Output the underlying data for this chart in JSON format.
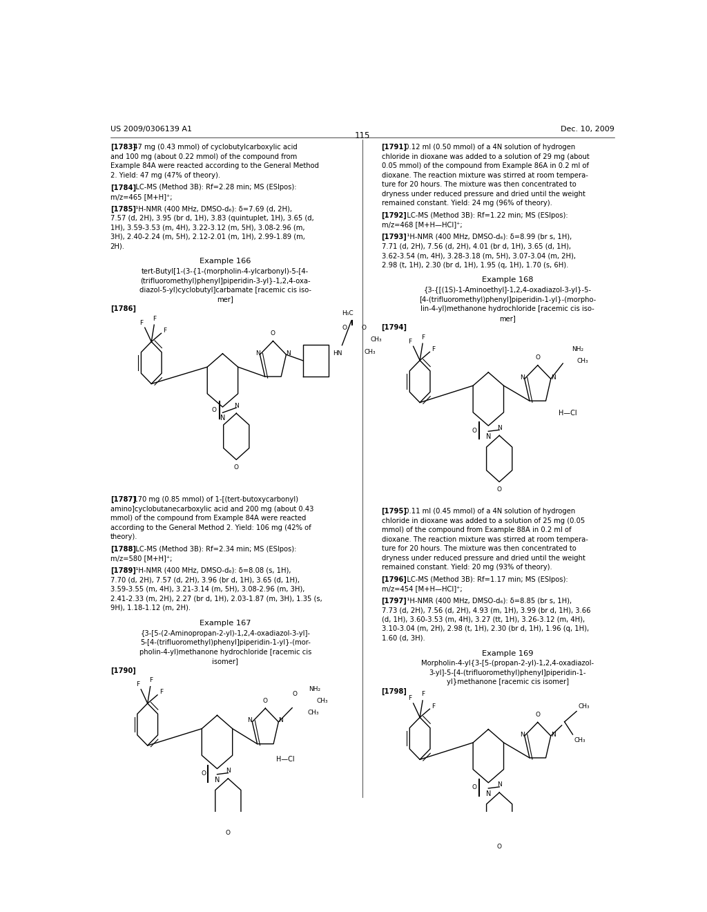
{
  "page_number": "115",
  "header_left": "US 2009/0306139 A1",
  "header_right": "Dec. 10, 2009",
  "background_color": "#ffffff",
  "text_color": "#000000",
  "example_166_title": "Example 166",
  "example_167_title": "Example 167",
  "example_168_title": "Example 168",
  "example_169_title": "Example 169",
  "label_1786": "[1786]",
  "label_1790": "[1790]",
  "label_1794": "[1794]",
  "label_1798": "[1798]"
}
